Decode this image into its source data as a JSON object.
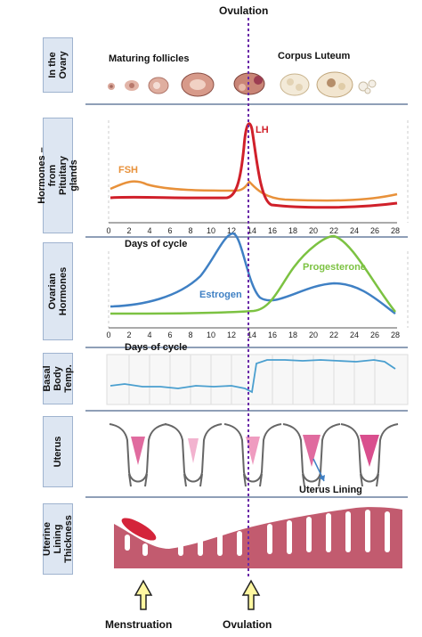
{
  "top_label": "Ovulation",
  "row_labels": {
    "ovary": "In the\nOvary",
    "pituitary": "Hormones –\nfrom\nPituitary\nglands",
    "ovarian": "Ovarian\nHormones",
    "bbt": "Basal\nBody\nTemp.",
    "uterus": "Uterus",
    "lining": "Uterine\nLining\nThickness"
  },
  "ovary": {
    "maturing_label": "Maturing follicles",
    "corpus_label": "Corpus Luteum"
  },
  "pituitary_chart": {
    "axis_label": "Days of cycle",
    "series": [
      {
        "name": "FSH",
        "color": "#e8913a"
      },
      {
        "name": "LH",
        "color": "#d0202a"
      }
    ],
    "ticks": [
      "0",
      "2",
      "4",
      "6",
      "8",
      "10",
      "12",
      "14",
      "16",
      "18",
      "20",
      "22",
      "24",
      "26",
      "28"
    ]
  },
  "ovarian_chart": {
    "axis_label": "Days of cycle",
    "series": [
      {
        "name": "Estrogen",
        "color": "#3f80c4"
      },
      {
        "name": "Progesterone",
        "color": "#7cc242"
      }
    ],
    "ticks": [
      "0",
      "2",
      "4",
      "6",
      "8",
      "10",
      "12",
      "14",
      "16",
      "18",
      "20",
      "22",
      "24",
      "26",
      "28"
    ]
  },
  "bbt_color": "#4a9fcf",
  "uterus": {
    "lining_label": "Uterus Lining"
  },
  "bottom": {
    "menstruation_label": "Menstruation",
    "ovulation_label": "Ovulation"
  },
  "colors": {
    "ovulation_line": "#6a2aa8",
    "arrow_fill": "#fff7a0",
    "lining": "#c25b6f"
  }
}
